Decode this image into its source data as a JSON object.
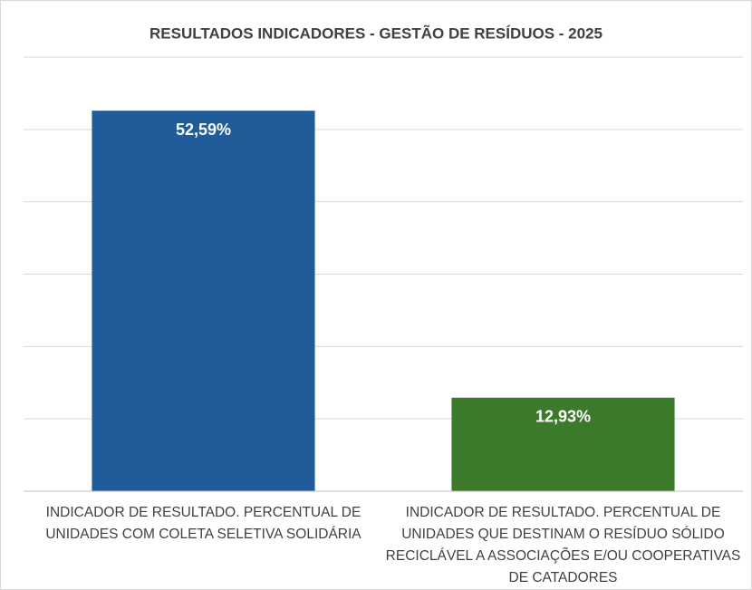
{
  "chart_data": {
    "type": "bar",
    "title": "RESULTADOS INDICADORES - GESTÃO DE RESÍDUOS - 2025",
    "categories": [
      "INDICADOR DE RESULTADO. PERCENTUAL DE UNIDADES COM COLETA SELETIVA SOLIDÁRIA",
      "INDICADOR DE RESULTADO. PERCENTUAL DE UNIDADES QUE DESTINAM O RESÍDUO SÓLIDO RECICLÁVEL A ASSOCIAÇÕES E/OU COOPERATIVAS DE CATADORES"
    ],
    "values": [
      52.59,
      12.93
    ],
    "value_labels": [
      "52,59%",
      "12,93%"
    ],
    "colors": [
      "#1f5c99",
      "#3b7a2b"
    ],
    "ylim": [
      0,
      60
    ],
    "yticks": [
      0,
      10,
      20,
      30,
      40,
      50,
      60
    ],
    "grid": true
  }
}
